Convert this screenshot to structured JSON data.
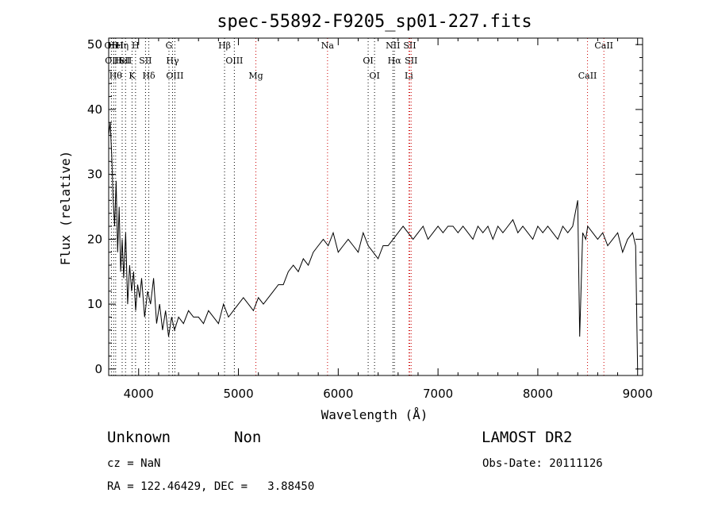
{
  "chart_data": {
    "type": "line",
    "title": "spec-55892-F9205_sp01-227.fits",
    "xlabel": "Wavelength (Å)",
    "ylabel": "Flux (relative)",
    "xlim": [
      3700,
      9050
    ],
    "ylim": [
      -1,
      51
    ],
    "xticks": [
      4000,
      5000,
      6000,
      7000,
      8000,
      9000
    ],
    "yticks": [
      0,
      10,
      20,
      30,
      40,
      50
    ],
    "grid": false,
    "series": [
      {
        "x": [
          3700,
          3715,
          3730,
          3745,
          3760,
          3775,
          3790,
          3805,
          3820,
          3835,
          3850,
          3870,
          3890,
          3910,
          3930,
          3950,
          3970,
          3990,
          4010,
          4030,
          4060,
          4090,
          4120,
          4150,
          4180,
          4210,
          4240,
          4270,
          4300,
          4330,
          4360,
          4400,
          4450,
          4500,
          4550,
          4600,
          4650,
          4700,
          4750,
          4800,
          4850,
          4900,
          4950,
          5000,
          5050,
          5100,
          5150,
          5200,
          5250,
          5300,
          5350,
          5400,
          5450,
          5500,
          5550,
          5600,
          5650,
          5700,
          5750,
          5800,
          5850,
          5900,
          5950,
          6000,
          6050,
          6100,
          6150,
          6200,
          6250,
          6300,
          6350,
          6400,
          6450,
          6500,
          6550,
          6600,
          6650,
          6700,
          6750,
          6800,
          6850,
          6900,
          6950,
          7000,
          7050,
          7100,
          7150,
          7200,
          7250,
          7300,
          7350,
          7400,
          7450,
          7500,
          7550,
          7600,
          7650,
          7700,
          7750,
          7800,
          7850,
          7900,
          7950,
          8000,
          8050,
          8100,
          8150,
          8200,
          8250,
          8300,
          8350,
          8400,
          8420,
          8450,
          8480,
          8500,
          8550,
          8600,
          8650,
          8700,
          8750,
          8800,
          8850,
          8900,
          8950,
          8980,
          9000
        ],
        "y": [
          36,
          38,
          33,
          26,
          22,
          29,
          18,
          25,
          15,
          20,
          14,
          21,
          10,
          16,
          12,
          15,
          9,
          13,
          11,
          14,
          8,
          12,
          10,
          14,
          7,
          10,
          6,
          9,
          5,
          8,
          6,
          8,
          7,
          9,
          8,
          8,
          7,
          9,
          8,
          7,
          10,
          8,
          9,
          10,
          11,
          10,
          9,
          11,
          10,
          11,
          12,
          13,
          13,
          15,
          16,
          15,
          17,
          16,
          18,
          19,
          20,
          19,
          21,
          18,
          19,
          20,
          19,
          18,
          21,
          19,
          18,
          17,
          19,
          19,
          20,
          21,
          22,
          21,
          20,
          21,
          22,
          20,
          21,
          22,
          21,
          22,
          22,
          21,
          22,
          21,
          20,
          22,
          21,
          22,
          20,
          22,
          21,
          22,
          23,
          21,
          22,
          21,
          20,
          22,
          21,
          22,
          21,
          20,
          22,
          21,
          22,
          26,
          5,
          21,
          20,
          22,
          21,
          20,
          21,
          19,
          20,
          21,
          18,
          20,
          21,
          19,
          0
        ]
      }
    ],
    "lines": [
      {
        "wl": 3727,
        "labels": [
          "OII"
        ],
        "color": "#000000"
      },
      {
        "wl": 3750,
        "labels": [
          "OIII"
        ],
        "color": "#000000"
      },
      {
        "wl": 3770,
        "labels": [
          "Hθ",
          "HeI"
        ],
        "color": "#000000"
      },
      {
        "wl": 3835,
        "labels": [
          "Hη",
          "HeI"
        ],
        "color": "#000000"
      },
      {
        "wl": 3869,
        "labels": [
          "SII"
        ],
        "color": "#000000"
      },
      {
        "wl": 3934,
        "labels": [
          "K"
        ],
        "color": "#000000"
      },
      {
        "wl": 3969,
        "labels": [
          "H"
        ],
        "color": "#000000"
      },
      {
        "wl": 4069,
        "labels": [
          "SII"
        ],
        "color": "#000000"
      },
      {
        "wl": 4102,
        "labels": [
          "Hδ"
        ],
        "color": "#000000"
      },
      {
        "wl": 4304,
        "labels": [
          "G"
        ],
        "color": "#000000"
      },
      {
        "wl": 4340,
        "labels": [
          "Hγ"
        ],
        "color": "#000000"
      },
      {
        "wl": 4363,
        "labels": [
          "OIII"
        ],
        "color": "#000000"
      },
      {
        "wl": 4861,
        "labels": [
          "Hβ"
        ],
        "color": "#000000"
      },
      {
        "wl": 4959,
        "labels": [
          "OIII"
        ],
        "color": "#000000"
      },
      {
        "wl": 5175,
        "labels": [
          "Mg"
        ],
        "color": "#cc0000"
      },
      {
        "wl": 5893,
        "labels": [
          "Na"
        ],
        "color": "#cc0000"
      },
      {
        "wl": 6300,
        "labels": [
          "OI"
        ],
        "color": "#000000"
      },
      {
        "wl": 6364,
        "labels": [
          "OI"
        ],
        "color": "#000000"
      },
      {
        "wl": 6548,
        "labels": [
          "NII"
        ],
        "color": "#000000"
      },
      {
        "wl": 6563,
        "labels": [
          "Hα"
        ],
        "color": "#000000"
      },
      {
        "wl": 6708,
        "labels": [
          "Li"
        ],
        "color": "#cc0000"
      },
      {
        "wl": 6717,
        "labels": [
          "SII"
        ],
        "color": "#cc0000"
      },
      {
        "wl": 6731,
        "labels": [
          "SII"
        ],
        "color": "#cc0000"
      },
      {
        "wl": 8498,
        "labels": [
          "CaII"
        ],
        "color": "#cc0000"
      },
      {
        "wl": 8662,
        "labels": [
          "CaII"
        ],
        "color": "#cc0000"
      }
    ]
  },
  "info": {
    "class": "Unknown",
    "subclass": "Non",
    "survey": "LAMOST DR2",
    "cz": "cz = NaN",
    "obs_date": "Obs-Date: 20111126",
    "radec": "RA = 122.46429, DEC =   3.88450"
  }
}
